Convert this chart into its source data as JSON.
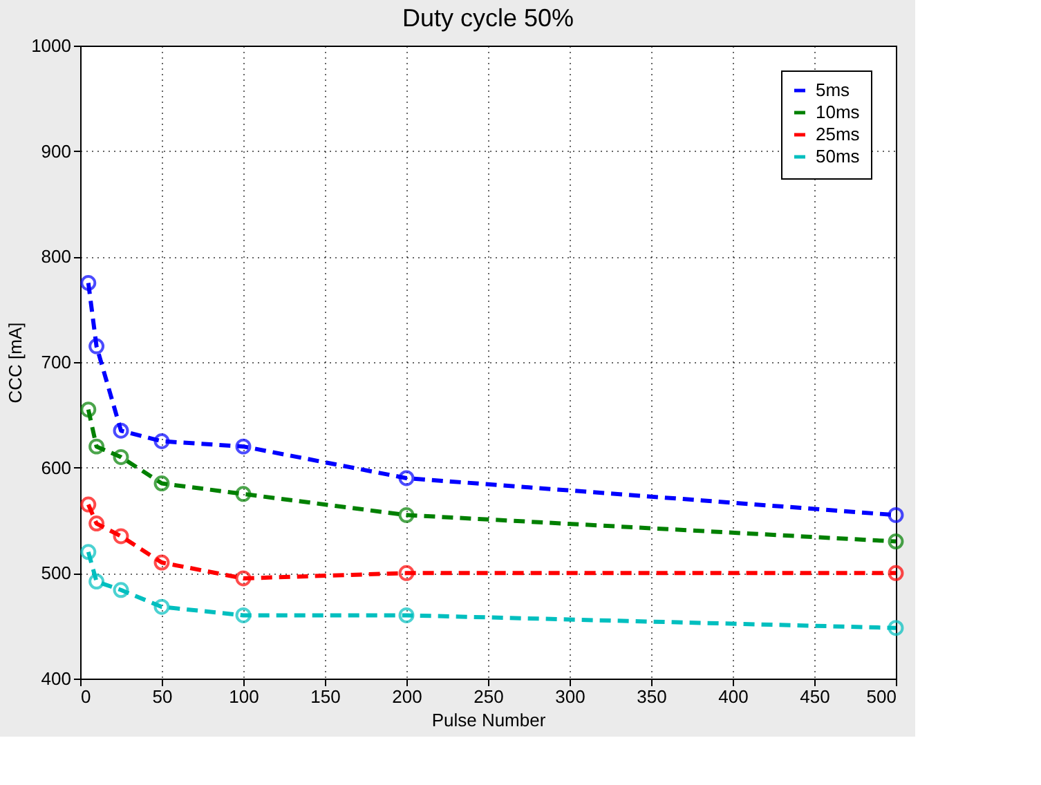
{
  "chart_data": {
    "type": "line",
    "title": "Duty cycle 50%",
    "xlabel": "Pulse Number",
    "ylabel": "CCC [mA]",
    "x": [
      5,
      10,
      25,
      50,
      100,
      200,
      500
    ],
    "series": [
      {
        "name": "5ms",
        "color": "#0000ff",
        "values": [
          775,
          715,
          635,
          625,
          620,
          590,
          555
        ]
      },
      {
        "name": "10ms",
        "color": "#008000",
        "values": [
          655,
          620,
          610,
          585,
          575,
          555,
          530
        ]
      },
      {
        "name": "25ms",
        "color": "#ff0000",
        "values": [
          565,
          547,
          535,
          510,
          495,
          500,
          500
        ]
      },
      {
        "name": "50ms",
        "color": "#00bfbf",
        "values": [
          520,
          492,
          484,
          468,
          460,
          460,
          448
        ]
      }
    ],
    "xlim": [
      0,
      500
    ],
    "xticks": [
      0,
      50,
      100,
      150,
      200,
      250,
      300,
      350,
      400,
      450,
      500
    ],
    "ylim": [
      400,
      1000
    ],
    "yticks": [
      400,
      500,
      600,
      700,
      800,
      900,
      1000
    ],
    "grid": true,
    "legend": "top right",
    "marker": "circle",
    "line_style": "dashed"
  }
}
